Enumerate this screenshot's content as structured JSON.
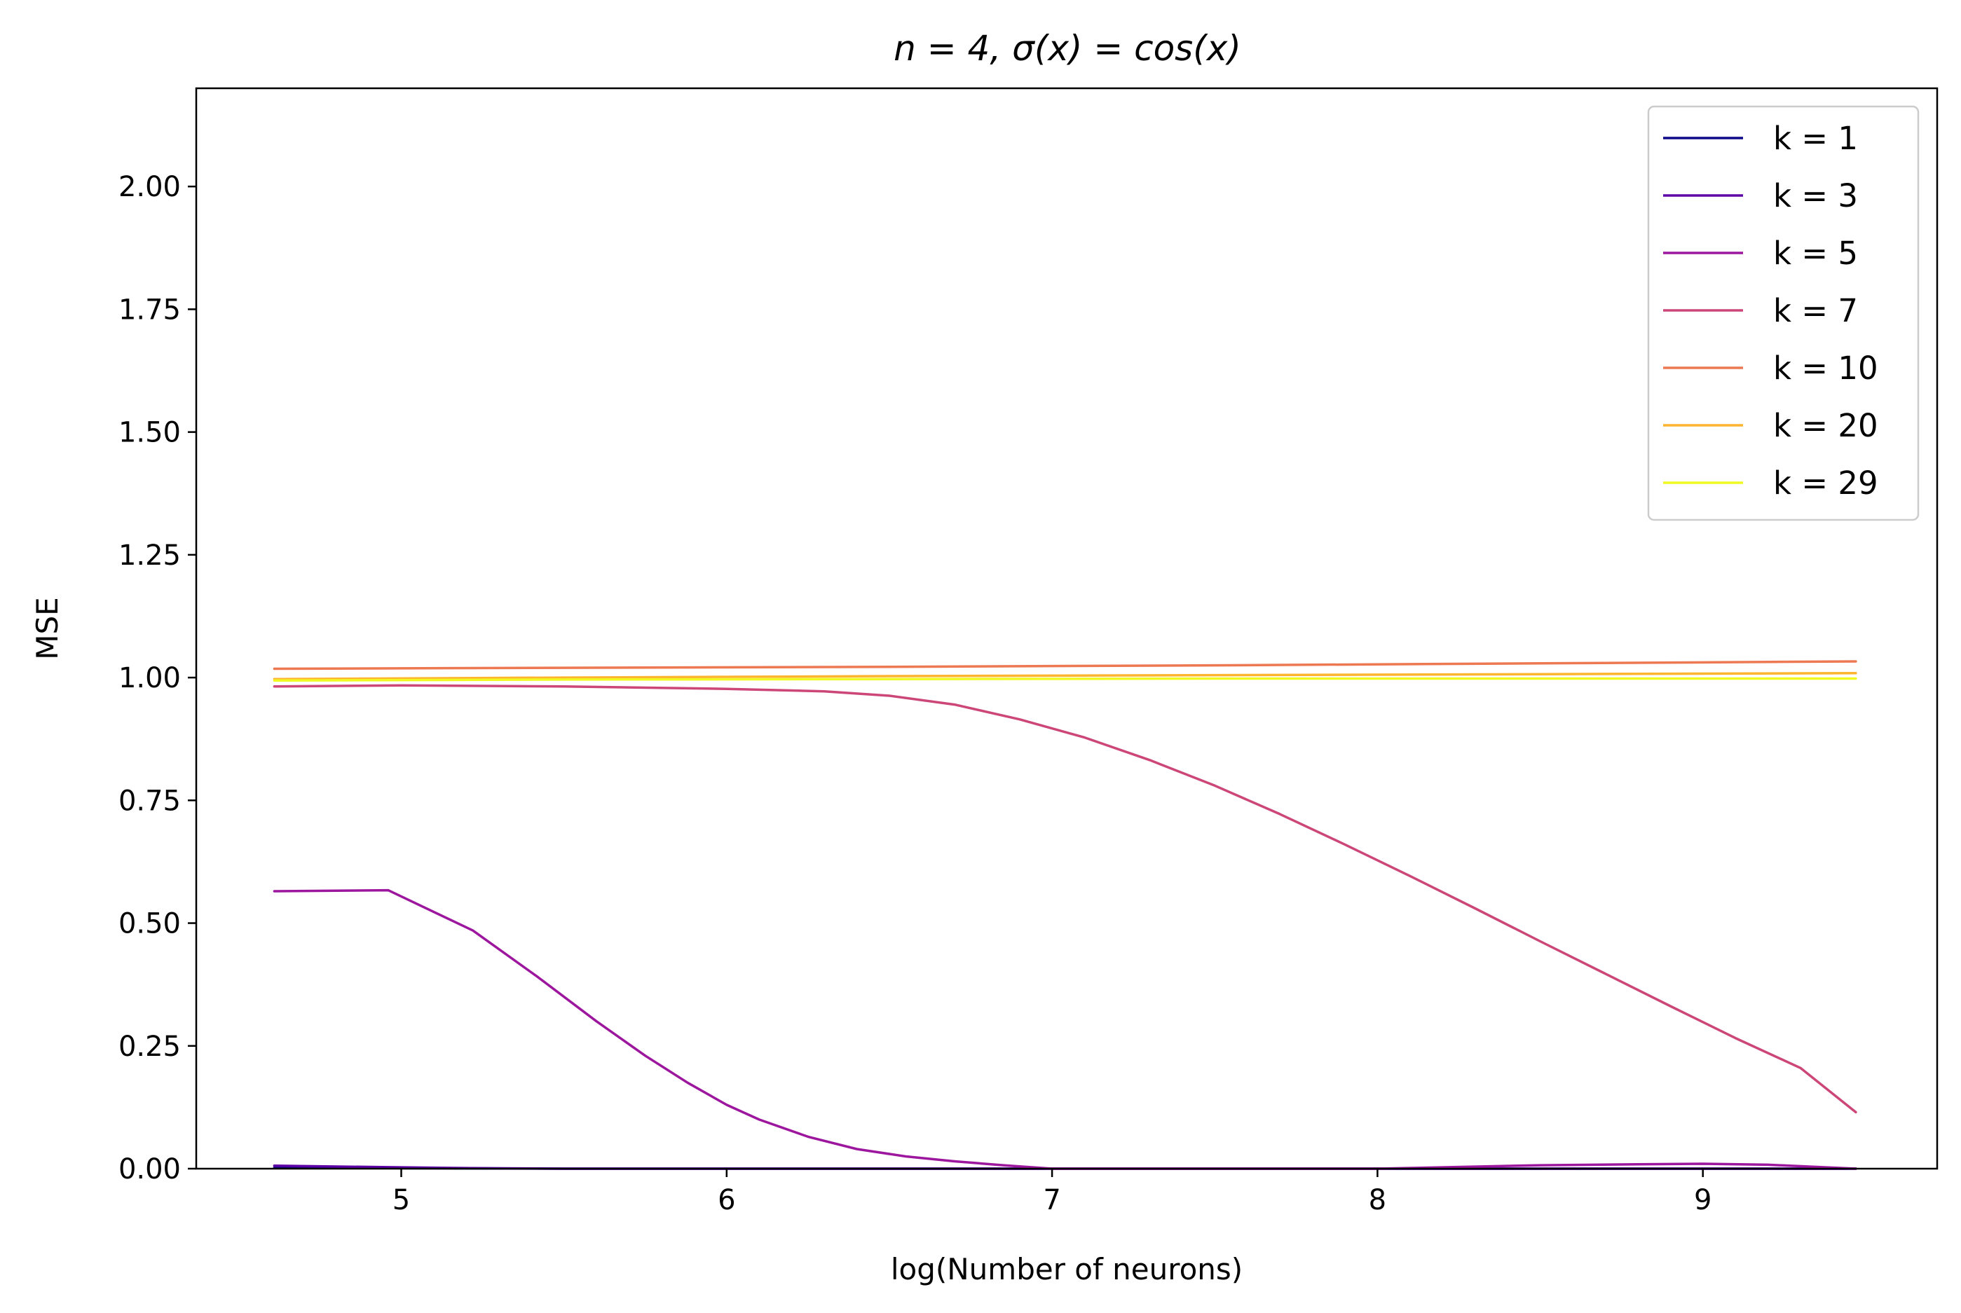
{
  "chart_data": {
    "type": "line",
    "title": "n = 4, σ(x) = cos(x)",
    "xlabel": "log(Number of neurons)",
    "ylabel": "MSE",
    "xlim": [
      4.37,
      9.72
    ],
    "ylim": [
      0,
      2.2
    ],
    "xticks": [
      5,
      6,
      7,
      8,
      9
    ],
    "xtick_labels": [
      "5",
      "6",
      "7",
      "8",
      "9"
    ],
    "yticks": [
      0,
      0.25,
      0.5,
      0.75,
      1.0,
      1.25,
      1.5,
      1.75,
      2.0
    ],
    "ytick_labels": [
      "0.00",
      "0.25",
      "0.50",
      "0.75",
      "1.00",
      "1.25",
      "1.50",
      "1.75",
      "2.00"
    ],
    "grid": false,
    "legend_position": "top-right",
    "series": [
      {
        "name": "k = 1",
        "color": "#0d0887",
        "x": [
          4.61,
          4.96,
          5.5,
          6.0,
          6.5,
          7.0,
          7.5,
          8.0,
          8.5,
          9.0,
          9.47
        ],
        "y": [
          0.002,
          0.001,
          0.0,
          0.0,
          0.0,
          0.0,
          0.0,
          0.0,
          0.0,
          0.0,
          0.0
        ]
      },
      {
        "name": "k = 3",
        "color": "#5c01a6",
        "x": [
          4.61,
          4.96,
          5.22,
          5.5,
          6.0,
          6.5,
          7.0,
          7.5,
          8.0,
          8.5,
          9.0,
          9.47
        ],
        "y": [
          0.006,
          0.003,
          0.001,
          0.0,
          0.0,
          0.0,
          0.0,
          0.0,
          0.0,
          0.0,
          0.0,
          0.0
        ]
      },
      {
        "name": "k = 5",
        "color": "#9c179e",
        "x": [
          4.61,
          4.96,
          5.22,
          5.42,
          5.6,
          5.75,
          5.88,
          6.0,
          6.1,
          6.25,
          6.4,
          6.55,
          6.7,
          6.85,
          7.0,
          7.5,
          8.0,
          8.5,
          8.8,
          9.0,
          9.2,
          9.47
        ],
        "y": [
          0.565,
          0.567,
          0.485,
          0.39,
          0.3,
          0.23,
          0.175,
          0.13,
          0.1,
          0.065,
          0.04,
          0.025,
          0.015,
          0.007,
          0.0,
          0.0,
          0.0,
          0.007,
          0.009,
          0.01,
          0.008,
          0.0
        ]
      },
      {
        "name": "k = 7",
        "color": "#cc4778",
        "x": [
          4.61,
          5.0,
          5.5,
          6.0,
          6.3,
          6.5,
          6.7,
          6.9,
          7.1,
          7.3,
          7.5,
          7.7,
          7.9,
          8.1,
          8.3,
          8.5,
          8.7,
          8.9,
          9.1,
          9.3,
          9.47
        ],
        "y": [
          0.982,
          0.984,
          0.982,
          0.977,
          0.972,
          0.963,
          0.945,
          0.915,
          0.878,
          0.832,
          0.78,
          0.722,
          0.66,
          0.596,
          0.53,
          0.463,
          0.397,
          0.331,
          0.266,
          0.205,
          0.115
        ]
      },
      {
        "name": "k = 10",
        "color": "#ed7953",
        "x": [
          4.61,
          5.5,
          6.5,
          7.5,
          8.5,
          9.47
        ],
        "y": [
          1.018,
          1.02,
          1.022,
          1.025,
          1.029,
          1.033
        ]
      },
      {
        "name": "k = 20",
        "color": "#fdb42f",
        "x": [
          4.61,
          5.5,
          6.5,
          7.5,
          8.5,
          9.47
        ],
        "y": [
          0.997,
          1.0,
          1.003,
          1.005,
          1.007,
          1.009
        ]
      },
      {
        "name": "k = 29",
        "color": "#f0f921",
        "x": [
          4.61,
          5.5,
          6.5,
          7.5,
          8.5,
          9.47
        ],
        "y": [
          0.994,
          0.996,
          0.997,
          0.998,
          0.998,
          0.998
        ]
      }
    ]
  }
}
